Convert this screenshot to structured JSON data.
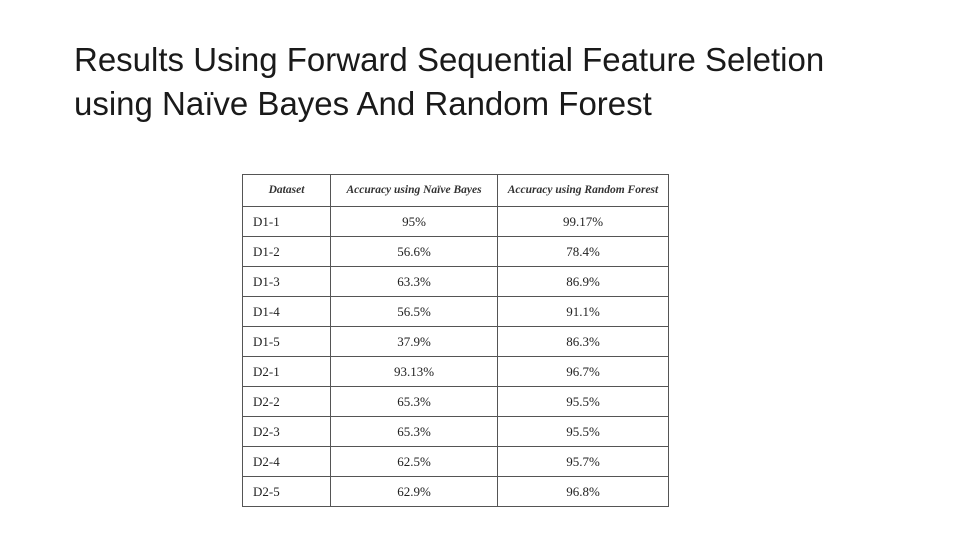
{
  "slide": {
    "title_line1": "Results Using Forward Sequential Feature Seletion",
    "title_line2": "using Naïve Bayes And Random Forest"
  },
  "table": {
    "headers": [
      "Dataset",
      "Accuracy using Naïve Bayes",
      "Accuracy using Random Forest"
    ],
    "rows": [
      [
        "D1-1",
        "95%",
        "99.17%"
      ],
      [
        "D1-2",
        "56.6%",
        "78.4%"
      ],
      [
        "D1-3",
        "63.3%",
        "86.9%"
      ],
      [
        "D1-4",
        "56.5%",
        "91.1%"
      ],
      [
        "D1-5",
        "37.9%",
        "86.3%"
      ],
      [
        "D2-1",
        "93.13%",
        "96.7%"
      ],
      [
        "D2-2",
        "65.3%",
        "95.5%"
      ],
      [
        "D2-3",
        "65.3%",
        "95.5%"
      ],
      [
        "D2-4",
        "62.5%",
        "95.7%"
      ],
      [
        "D2-5",
        "62.9%",
        "96.8%"
      ]
    ]
  }
}
